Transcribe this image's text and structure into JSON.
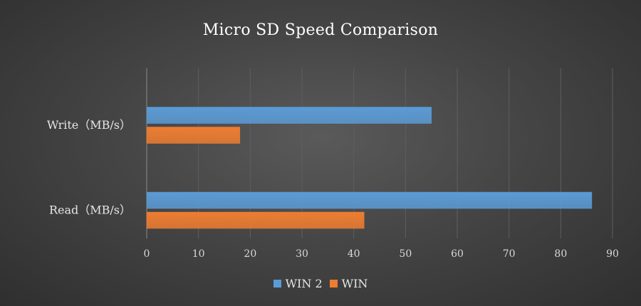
{
  "chart_data": {
    "type": "bar",
    "orientation": "horizontal",
    "title": "Micro SD Speed Comparison",
    "categories": [
      "Write（MB/s）",
      "Read（MB/s）"
    ],
    "series": [
      {
        "name": "WIN 2",
        "values": [
          55,
          86
        ],
        "color": "#5b9bd5"
      },
      {
        "name": "WIN",
        "values": [
          18,
          42
        ],
        "color": "#ed7d31"
      }
    ],
    "xlim": [
      0,
      90
    ],
    "xticks": [
      0,
      10,
      20,
      30,
      40,
      50,
      60,
      70,
      80,
      90
    ],
    "grid": true,
    "legend_position": "bottom"
  }
}
